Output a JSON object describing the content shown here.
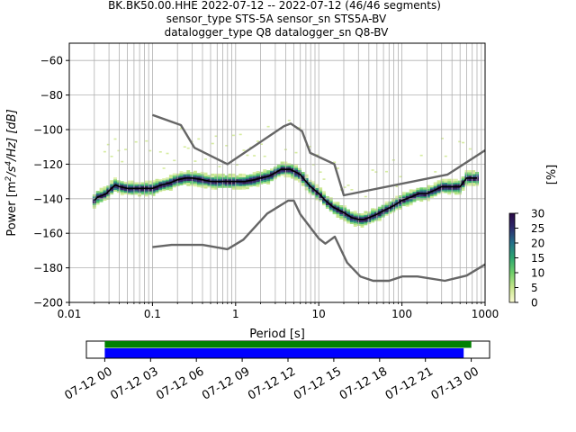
{
  "header": {
    "line1": "BK.BK50.00.HHE   2022-07-12 -- 2022-07-12  (46/46 segments)",
    "line2": "sensor_type STS-5A sensor_sn STS5A-BV",
    "line3": "datalogger_type Q8 datalogger_sn Q8-BV"
  },
  "colors": {
    "mode_line": "#000000",
    "noise_model": "#666666",
    "grid": "#b0b0b0",
    "data_available": "#008000",
    "data_used": "#0000ff",
    "colormap": [
      "#fbfbd2",
      "#c8e68c",
      "#6fcf6a",
      "#2ca66f",
      "#23708a",
      "#2d2b6d",
      "#2a0845"
    ]
  },
  "chart_data": [
    {
      "type": "heatmap",
      "title": "",
      "xlabel": "Period [s]",
      "ylabel": "Power [m²/s⁴/Hz] [dB]",
      "ylabel_parts": {
        "main": "Power [m",
        "sup1": "2",
        "mid": "/s",
        "sup2": "4",
        "end": "/Hz] [dB]"
      },
      "x_scale": "log",
      "xlim": [
        0.01,
        1000
      ],
      "ylim": [
        -200,
        -50
      ],
      "grid": true,
      "x_ticks": [
        0.01,
        0.1,
        1,
        10,
        100,
        1000
      ],
      "x_tick_labels": [
        "0.01",
        "0.1",
        "1",
        "10",
        "100",
        "1000"
      ],
      "y_ticks": [
        -200,
        -180,
        -160,
        -140,
        -120,
        -100,
        -80,
        -60
      ],
      "y_tick_labels": [
        "−200",
        "−180",
        "−160",
        "−140",
        "−120",
        "−100",
        "−80",
        "−60"
      ],
      "mode_curve": {
        "x": [
          0.02,
          0.022,
          0.025,
          0.028,
          0.032,
          0.036,
          0.04,
          0.05,
          0.06,
          0.08,
          0.1,
          0.13,
          0.16,
          0.2,
          0.25,
          0.3,
          0.4,
          0.5,
          0.7,
          1,
          1.3,
          1.7,
          2,
          2.5,
          3,
          3.5,
          4,
          4.5,
          5,
          6,
          7,
          8,
          10,
          12,
          15,
          20,
          25,
          30,
          35,
          40,
          50,
          60,
          80,
          100,
          130,
          160,
          200,
          250,
          300,
          400,
          500,
          600,
          800
        ],
        "y": [
          -141,
          -139,
          -138,
          -137,
          -134,
          -132,
          -133,
          -134,
          -134,
          -134,
          -134,
          -132,
          -131,
          -129,
          -128,
          -128,
          -129,
          -130,
          -130,
          -130,
          -130,
          -129,
          -128,
          -127,
          -125,
          -123,
          -123,
          -123,
          -124,
          -126,
          -130,
          -133,
          -137,
          -141,
          -145,
          -148,
          -151,
          -152,
          -152,
          -151,
          -149,
          -147,
          -144,
          -141,
          -139,
          -137,
          -137,
          -135,
          -133,
          -133,
          -133,
          -128,
          -128
        ]
      },
      "noise_model_high": {
        "x": [
          0.1,
          0.22,
          0.32,
          0.8,
          3.8,
          4.6,
          6.3,
          7.9,
          15.4,
          20,
          354.8,
          1000
        ],
        "y": [
          -91.5,
          -97.4,
          -110.5,
          -120,
          -98,
          -96.5,
          -101,
          -113.5,
          -120,
          -138,
          -126,
          -112
        ]
      },
      "noise_model_low": {
        "x": [
          0.1,
          0.17,
          0.4,
          0.8,
          1.24,
          2.4,
          4.3,
          5,
          6,
          10,
          12,
          15.6,
          21.9,
          31.6,
          45,
          70,
          101,
          154,
          328,
          600,
          1000
        ],
        "y": [
          -168,
          -166.7,
          -166.7,
          -169.2,
          -163.7,
          -148.6,
          -141.1,
          -141.1,
          -149,
          -163,
          -166,
          -162,
          -177,
          -185,
          -187.5,
          -187.5,
          -185,
          -185,
          -187.5,
          -184.5,
          -178
        ]
      },
      "colorbar": {
        "label": "[%]",
        "range": [
          0,
          30
        ],
        "ticks": [
          0,
          5,
          10,
          15,
          20,
          25,
          30
        ],
        "tick_labels": [
          "0",
          "5",
          "10",
          "15",
          "20",
          "25",
          "30"
        ]
      }
    },
    {
      "type": "timeline",
      "title": "",
      "x_tick_labels": [
        "07-12 00",
        "07-12 03",
        "07-12 06",
        "07-12 09",
        "07-12 12",
        "07-12 15",
        "07-12 18",
        "07-12 21",
        "07-13 00"
      ],
      "x_tick_hours": [
        0,
        3,
        6,
        9,
        12,
        15,
        18,
        21,
        24
      ],
      "xlim_hours": [
        -1.2,
        25.2
      ],
      "series": [
        {
          "color": "green",
          "start_hour": 0,
          "end_hour": 24
        },
        {
          "color": "blue",
          "start_hour": 0,
          "end_hour": 23.5
        }
      ]
    }
  ]
}
